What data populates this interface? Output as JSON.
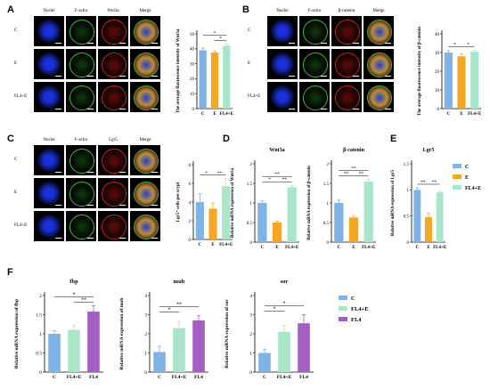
{
  "figure": {
    "panels": [
      {
        "letter": "A",
        "headers": [
          "Nuclei",
          "F-actin",
          "Wnt3a",
          "Merge"
        ],
        "rows": [
          "C",
          "E",
          "FL4+E"
        ]
      },
      {
        "letter": "B",
        "headers": [
          "Nuclei",
          "F-actin",
          "β-catenin",
          "Merge"
        ],
        "rows": [
          "C",
          "E",
          "FL4+E"
        ]
      },
      {
        "letter": "C",
        "headers": [
          "Nuclei",
          "F-actin",
          "Lgr5",
          "Merge"
        ],
        "rows": [
          "C",
          "E",
          "FL4+E"
        ]
      },
      {
        "letter": "D"
      },
      {
        "letter": "E"
      },
      {
        "letter": "F"
      }
    ],
    "channel_colors": {
      "nuclei": "#1a2fd8",
      "factin": "#36c238",
      "red": "#d8201e",
      "merge": "#c8a23a"
    }
  },
  "chart_data": [
    {
      "id": "A",
      "type": "bar",
      "categories": [
        "C",
        "E",
        "FL4+E"
      ],
      "values": [
        39,
        37.5,
        42
      ],
      "errors": [
        1.5,
        1,
        1.2
      ],
      "colors": [
        "#7fb3e6",
        "#f5a623",
        "#a9e6c9"
      ],
      "ylabel": "The average fluorescence intensity of Wnt3a",
      "ylim": [
        0,
        50
      ],
      "ticks": [
        0,
        10,
        20,
        30,
        40,
        50
      ],
      "signif": [
        {
          "from": 0,
          "to": 2,
          "label": "*"
        },
        {
          "from": 1,
          "to": 2,
          "label": "*"
        }
      ]
    },
    {
      "id": "B",
      "type": "bar",
      "categories": [
        "C",
        "E",
        "FL4+E"
      ],
      "values": [
        30,
        28,
        30.5
      ],
      "errors": [
        1,
        1.2,
        0.8
      ],
      "colors": [
        "#7fb3e6",
        "#f5a623",
        "#a9e6c9"
      ],
      "ylabel": "The average fluorescence intensity of β-catenin",
      "ylim": [
        0,
        40
      ],
      "ticks": [
        0,
        10,
        20,
        30,
        40
      ],
      "signif": [
        {
          "from": 0,
          "to": 1,
          "label": "*"
        },
        {
          "from": 1,
          "to": 2,
          "label": "*"
        }
      ]
    },
    {
      "id": "C",
      "type": "bar",
      "categories": [
        "C",
        "E",
        "FL4+E"
      ],
      "values": [
        4,
        3.3,
        5.7
      ],
      "errors": [
        0.9,
        0.6,
        0.8
      ],
      "colors": [
        "#7fb3e6",
        "#f5a623",
        "#a9e6c9"
      ],
      "ylabel": "Lgr5⁺ cells per crypt",
      "ylim": [
        0,
        8
      ],
      "ticks": [
        0,
        2,
        4,
        6,
        8
      ],
      "signif": [
        {
          "from": 0,
          "to": 1,
          "label": "*"
        },
        {
          "from": 1,
          "to": 2,
          "label": "**"
        }
      ]
    },
    {
      "id": "D1",
      "type": "bar",
      "title": "Wnt3a",
      "categories": [
        "C",
        "E",
        "FL4+E"
      ],
      "values": [
        1.0,
        0.5,
        1.4
      ],
      "errors": [
        0.05,
        0.03,
        0.05
      ],
      "colors": [
        "#7fb3e6",
        "#f5a623",
        "#a9e6c9"
      ],
      "ylabel": "Relative mRNA expression of Wnt3a",
      "ylim": [
        0,
        2.0
      ],
      "ticks": [
        0.0,
        0.5,
        1.0,
        1.5,
        2.0
      ],
      "signif": [
        {
          "from": 0,
          "to": 1,
          "label": "*"
        },
        {
          "from": 0,
          "to": 2,
          "label": "**"
        },
        {
          "from": 1,
          "to": 2,
          "label": "**"
        }
      ]
    },
    {
      "id": "D2",
      "type": "bar",
      "title": "β-catenin",
      "categories": [
        "C",
        "E",
        "FL4+E"
      ],
      "values": [
        1.0,
        0.63,
        1.55
      ],
      "errors": [
        0.08,
        0.03,
        0.05
      ],
      "colors": [
        "#7fb3e6",
        "#f5a623",
        "#a9e6c9"
      ],
      "ylabel": "Relative mRNA expression of β-catenin",
      "ylim": [
        0,
        2.0
      ],
      "ticks": [
        0.0,
        0.5,
        1.0,
        1.5,
        2.0
      ],
      "signif": [
        {
          "from": 0,
          "to": 1,
          "label": "**"
        },
        {
          "from": 0,
          "to": 2,
          "label": "**"
        },
        {
          "from": 1,
          "to": 2,
          "label": "**"
        }
      ]
    },
    {
      "id": "E",
      "type": "bar",
      "title": "Lgr5",
      "categories": [
        "C",
        "E",
        "FL4+E"
      ],
      "values": [
        1.0,
        0.48,
        0.95
      ],
      "errors": [
        0.04,
        0.07,
        0.02
      ],
      "colors": [
        "#7fb3e6",
        "#f5a623",
        "#a9e6c9"
      ],
      "ylabel": "Relative mRNA expression of Lgr5",
      "ylim": [
        0,
        1.5
      ],
      "ticks": [
        0.0,
        0.5,
        1.0,
        1.5
      ],
      "signif": [
        {
          "from": 0,
          "to": 1,
          "label": "**"
        },
        {
          "from": 1,
          "to": 2,
          "label": "**"
        }
      ],
      "legend": {
        "labels": [
          "C",
          "E",
          "FL4+E"
        ],
        "colors": [
          "#7fb3e6",
          "#f5a623",
          "#a9e6c9"
        ]
      }
    },
    {
      "id": "F1",
      "type": "bar",
      "title": "fbp",
      "categories": [
        "C",
        "FL4+E",
        "FL4"
      ],
      "values": [
        1.0,
        1.1,
        1.58
      ],
      "errors": [
        0.08,
        0.12,
        0.15
      ],
      "colors": [
        "#7fb3e6",
        "#a9e6c9",
        "#a55fc3"
      ],
      "ylabel": "Relative mRNA expression of fbp",
      "ylim": [
        0,
        2.0
      ],
      "ticks": [
        0.0,
        0.5,
        1.0,
        1.5,
        2.0
      ],
      "signif": [
        {
          "from": 0,
          "to": 2,
          "label": "*"
        },
        {
          "from": 1,
          "to": 2,
          "label": "**"
        }
      ]
    },
    {
      "id": "F2",
      "type": "bar",
      "title": "mub",
      "categories": [
        "C",
        "FL4+E",
        "FL4"
      ],
      "values": [
        1.05,
        2.3,
        2.7
      ],
      "errors": [
        0.3,
        0.35,
        0.25
      ],
      "colors": [
        "#7fb3e6",
        "#a9e6c9",
        "#a55fc3"
      ],
      "ylabel": "Relative mRNA expression of mub",
      "ylim": [
        0,
        4
      ],
      "ticks": [
        0,
        1,
        2,
        3,
        4
      ],
      "signif": [
        {
          "from": 0,
          "to": 1,
          "label": "*"
        },
        {
          "from": 0,
          "to": 2,
          "label": "**"
        }
      ]
    },
    {
      "id": "F3",
      "type": "bar",
      "title": "sor",
      "categories": [
        "C",
        "FL4+E",
        "FL4"
      ],
      "values": [
        1.0,
        2.1,
        2.55
      ],
      "errors": [
        0.2,
        0.35,
        0.45
      ],
      "colors": [
        "#7fb3e6",
        "#a9e6c9",
        "#a55fc3"
      ],
      "ylabel": "Relative mRNA expression of sor",
      "ylim": [
        0,
        4
      ],
      "ticks": [
        0,
        1,
        2,
        3,
        4
      ],
      "signif": [
        {
          "from": 0,
          "to": 1,
          "label": "*"
        },
        {
          "from": 0,
          "to": 2,
          "label": "*"
        }
      ],
      "legend": {
        "labels": [
          "C",
          "FL4+E",
          "FL4"
        ],
        "colors": [
          "#7fb3e6",
          "#a9e6c9",
          "#a55fc3"
        ]
      }
    }
  ]
}
